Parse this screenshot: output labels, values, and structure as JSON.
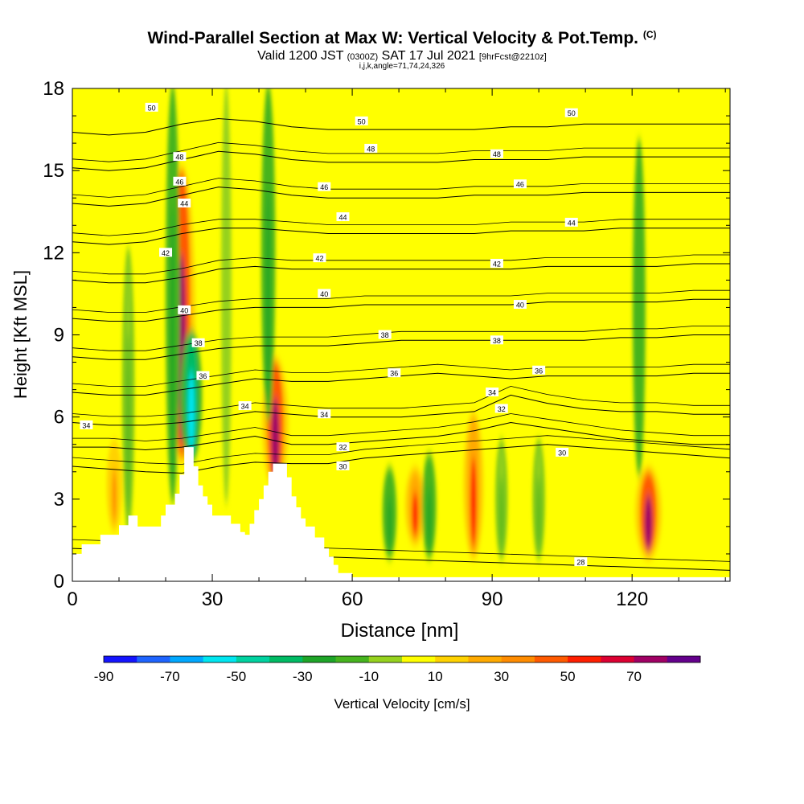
{
  "titles": {
    "main": "Wind-Parallel Section at Max W: Vertical Velocity & Pot.Temp.",
    "main_suffix": "(C)",
    "valid_prefix": "Valid 1200 JST",
    "valid_utc": "(0300Z)",
    "valid_date": "SAT 17 Jul 2021",
    "forecast": "[9hrFcst@2210z]",
    "params": "i,j,k,angle=71,74,24,326"
  },
  "chart_data": {
    "type": "heatmap",
    "title": "Wind-Parallel Section at Max W: Vertical Velocity & Pot.Temp.",
    "xlabel": "Distance [nm]",
    "ylabel": "Height [Kft MSL]",
    "xlim": [
      0,
      141
    ],
    "ylim": [
      0,
      18
    ],
    "x_ticks": [
      "0",
      "30",
      "60",
      "90",
      "120"
    ],
    "x_tick_values": [
      0,
      30,
      60,
      90,
      120
    ],
    "y_ticks": [
      "0",
      "3",
      "6",
      "9",
      "12",
      "15",
      "18"
    ],
    "y_tick_values": [
      0,
      3,
      6,
      9,
      12,
      15,
      18
    ],
    "colorbar": {
      "label": "Vertical Velocity [cm/s]",
      "bounds": [
        -90,
        -80,
        -70,
        -60,
        -50,
        -40,
        -30,
        -20,
        -10,
        0,
        10,
        20,
        30,
        40,
        50,
        60,
        70,
        80
      ],
      "colors": [
        "#1414ff",
        "#1e64ff",
        "#00a8ff",
        "#00e6f0",
        "#00d2a0",
        "#00bb64",
        "#1ea528",
        "#46b41e",
        "#96d21e",
        "#ffff00",
        "#ffd200",
        "#ffaa00",
        "#ff8c00",
        "#ff5a00",
        "#ff1e00",
        "#dc0032",
        "#a00064",
        "#64008c"
      ],
      "tick_labels": [
        "-90",
        "-70",
        "-50",
        "-30",
        "-10",
        "10",
        "30",
        "50",
        "70"
      ],
      "tick_values": [
        -90,
        -70,
        -50,
        -30,
        -10,
        10,
        30,
        50,
        70
      ]
    },
    "velocity_features": [
      {
        "x": 23.5,
        "y_bottom": 4.5,
        "y_top": 15.0,
        "value": 75
      },
      {
        "x": 25.5,
        "y_bottom": 4.5,
        "y_top": 9.0,
        "value": -55
      },
      {
        "x": 21.5,
        "y_bottom": 3.0,
        "y_top": 18.0,
        "value": -25
      },
      {
        "x": 43.5,
        "y_bottom": 3.5,
        "y_top": 8.0,
        "value": 75
      },
      {
        "x": 42.0,
        "y_bottom": 6.0,
        "y_top": 18.0,
        "value": -25
      },
      {
        "x": 73.5,
        "y_bottom": 1.5,
        "y_top": 4.0,
        "value": 50
      },
      {
        "x": 68.0,
        "y_bottom": 1.0,
        "y_top": 4.0,
        "value": -25
      },
      {
        "x": 76.5,
        "y_bottom": 1.0,
        "y_top": 4.5,
        "value": -25
      },
      {
        "x": 86.0,
        "y_bottom": 1.0,
        "y_top": 6.0,
        "value": 50
      },
      {
        "x": 92.0,
        "y_bottom": 1.0,
        "y_top": 5.0,
        "value": -15
      },
      {
        "x": 123.5,
        "y_bottom": 1.0,
        "y_top": 4.0,
        "value": 75
      },
      {
        "x": 121.5,
        "y_bottom": 4.0,
        "y_top": 16.0,
        "value": -20
      },
      {
        "x": 12.0,
        "y_bottom": 2.0,
        "y_top": 12.0,
        "value": -15
      },
      {
        "x": 9.0,
        "y_bottom": 2.0,
        "y_top": 5.0,
        "value": 30
      },
      {
        "x": 33.0,
        "y_bottom": 3.0,
        "y_top": 18.0,
        "value": -10
      },
      {
        "x": 100.0,
        "y_bottom": 1.0,
        "y_top": 5.0,
        "value": -15
      }
    ],
    "terrain": {
      "x": [
        0,
        2,
        2,
        6,
        6,
        10,
        10,
        12,
        12,
        14,
        14,
        19,
        19,
        20,
        20,
        22,
        22,
        23,
        23,
        24,
        24,
        26,
        26,
        27,
        27,
        28,
        28,
        29,
        29,
        30,
        30,
        34,
        34,
        36,
        36,
        37,
        37,
        38,
        38,
        39,
        39,
        40,
        40,
        41,
        41,
        42,
        42,
        43,
        43,
        44,
        44,
        46,
        46,
        47,
        47,
        48,
        48,
        49,
        49,
        50,
        50,
        52,
        52,
        54,
        54,
        55,
        55,
        56,
        56,
        57,
        57,
        60,
        60
      ],
      "y": [
        1.0,
        1.0,
        1.35,
        1.35,
        1.7,
        1.7,
        2.05,
        2.05,
        2.4,
        2.4,
        2.0,
        2.0,
        2.4,
        2.4,
        2.8,
        2.8,
        3.2,
        3.2,
        3.9,
        3.9,
        4.9,
        4.9,
        4.2,
        4.2,
        3.5,
        3.5,
        3.1,
        3.1,
        2.8,
        2.8,
        2.4,
        2.4,
        2.1,
        2.1,
        1.8,
        1.8,
        1.7,
        1.7,
        2.1,
        2.1,
        2.6,
        2.6,
        3.0,
        3.0,
        3.5,
        3.5,
        4.0,
        4.0,
        4.3,
        4.3,
        4.3,
        4.3,
        3.8,
        3.8,
        3.1,
        3.1,
        2.7,
        2.7,
        2.3,
        2.3,
        2.0,
        2.0,
        1.6,
        1.6,
        1.2,
        1.2,
        0.9,
        0.9,
        0.6,
        0.6,
        0.3,
        0.3,
        0.0
      ]
    },
    "theta_contours": [
      {
        "level": 28,
        "label": "28",
        "y": [
          1.2,
          1.1,
          1.0,
          0.9,
          0.8,
          0.7,
          0.6,
          0.5,
          0.4
        ]
      },
      {
        "level": 30,
        "label": "30",
        "y": [
          4.2,
          4.1,
          4.0,
          3.95,
          4.2,
          4.35,
          4.3,
          4.3,
          4.5,
          4.6,
          4.7,
          4.8,
          4.9,
          5.0,
          4.9,
          4.8,
          4.7,
          4.6,
          4.5
        ]
      },
      {
        "level": 32,
        "label": "32",
        "y": [
          4.9,
          4.9,
          4.8,
          4.9,
          5.1,
          5.3,
          5.0,
          5.0,
          5.1,
          5.2,
          5.3,
          5.5,
          5.8,
          5.6,
          5.4,
          5.2,
          5.1,
          5.0,
          5.0
        ]
      },
      {
        "level": 34,
        "label": "34",
        "y": [
          5.8,
          5.7,
          5.7,
          5.8,
          6.0,
          6.2,
          6.1,
          6.0,
          6.0,
          6.0,
          6.1,
          6.2,
          6.8,
          6.5,
          6.3,
          6.2,
          6.2,
          6.1,
          6.1
        ]
      },
      {
        "level": 36,
        "label": "36",
        "y": [
          6.9,
          6.8,
          6.8,
          7.0,
          7.2,
          7.4,
          7.3,
          7.3,
          7.4,
          7.5,
          7.6,
          7.5,
          7.4,
          7.5,
          7.5,
          7.5,
          7.5,
          7.6,
          7.6
        ]
      },
      {
        "level": 38,
        "label": "38",
        "y": [
          8.2,
          8.1,
          8.1,
          8.3,
          8.5,
          8.6,
          8.6,
          8.6,
          8.7,
          8.8,
          8.8,
          8.8,
          8.8,
          8.8,
          8.8,
          8.9,
          8.9,
          9.0,
          9.0
        ]
      },
      {
        "level": 40,
        "label": "40",
        "y": [
          9.6,
          9.5,
          9.5,
          9.7,
          9.9,
          10.0,
          10.0,
          10.0,
          10.1,
          10.1,
          10.1,
          10.1,
          10.1,
          10.2,
          10.2,
          10.2,
          10.2,
          10.3,
          10.3
        ]
      },
      {
        "level": 42,
        "label": "42",
        "y": [
          11.0,
          10.9,
          10.9,
          11.1,
          11.4,
          11.5,
          11.4,
          11.4,
          11.4,
          11.4,
          11.4,
          11.4,
          11.4,
          11.5,
          11.5,
          11.5,
          11.5,
          11.6,
          11.6
        ]
      },
      {
        "level": 44,
        "label": "44",
        "y": [
          12.4,
          12.3,
          12.4,
          12.7,
          12.9,
          12.9,
          12.8,
          12.7,
          12.7,
          12.7,
          12.7,
          12.7,
          12.8,
          12.8,
          12.8,
          12.9,
          12.9,
          12.9,
          12.9
        ]
      },
      {
        "level": 46,
        "label": "46",
        "y": [
          13.8,
          13.7,
          13.8,
          14.1,
          14.4,
          14.3,
          14.1,
          14.0,
          14.0,
          14.0,
          14.0,
          14.1,
          14.1,
          14.1,
          14.2,
          14.2,
          14.2,
          14.2,
          14.2
        ]
      },
      {
        "level": 48,
        "label": "48",
        "y": [
          15.1,
          15.0,
          15.1,
          15.4,
          15.7,
          15.6,
          15.4,
          15.3,
          15.3,
          15.3,
          15.3,
          15.4,
          15.4,
          15.4,
          15.5,
          15.5,
          15.5,
          15.5,
          15.5
        ]
      },
      {
        "level": 50,
        "label": "50",
        "y": [
          16.4,
          16.3,
          16.4,
          16.7,
          16.9,
          16.8,
          16.6,
          16.5,
          16.5,
          16.5,
          16.5,
          16.5,
          16.6,
          16.6,
          16.7,
          16.7,
          16.7,
          16.7,
          16.7
        ]
      }
    ],
    "contour_labels": [
      {
        "text": "50",
        "x": 17,
        "y": 17.3
      },
      {
        "text": "50",
        "x": 62,
        "y": 16.8
      },
      {
        "text": "50",
        "x": 107,
        "y": 17.1
      },
      {
        "text": "48",
        "x": 23,
        "y": 15.5
      },
      {
        "text": "48",
        "x": 64,
        "y": 15.8
      },
      {
        "text": "48",
        "x": 91,
        "y": 15.6
      },
      {
        "text": "46",
        "x": 23,
        "y": 14.6
      },
      {
        "text": "46",
        "x": 54,
        "y": 14.4
      },
      {
        "text": "46",
        "x": 96,
        "y": 14.5
      },
      {
        "text": "44",
        "x": 24,
        "y": 13.8
      },
      {
        "text": "44",
        "x": 58,
        "y": 13.3
      },
      {
        "text": "44",
        "x": 107,
        "y": 13.1
      },
      {
        "text": "42",
        "x": 20,
        "y": 12.0
      },
      {
        "text": "42",
        "x": 53,
        "y": 11.8
      },
      {
        "text": "42",
        "x": 91,
        "y": 11.6
      },
      {
        "text": "40",
        "x": 24,
        "y": 9.9
      },
      {
        "text": "40",
        "x": 54,
        "y": 10.5
      },
      {
        "text": "40",
        "x": 96,
        "y": 10.1
      },
      {
        "text": "38",
        "x": 27,
        "y": 8.7
      },
      {
        "text": "38",
        "x": 67,
        "y": 9.0
      },
      {
        "text": "38",
        "x": 91,
        "y": 8.8
      },
      {
        "text": "36",
        "x": 28,
        "y": 7.5
      },
      {
        "text": "36",
        "x": 69,
        "y": 7.6
      },
      {
        "text": "36",
        "x": 100,
        "y": 7.7
      },
      {
        "text": "34",
        "x": 3,
        "y": 5.7
      },
      {
        "text": "34",
        "x": 37,
        "y": 6.4
      },
      {
        "text": "34",
        "x": 54,
        "y": 6.1
      },
      {
        "text": "34",
        "x": 90,
        "y": 6.9
      },
      {
        "text": "32",
        "x": 58,
        "y": 4.9
      },
      {
        "text": "32",
        "x": 92,
        "y": 6.3
      },
      {
        "text": "30",
        "x": 58,
        "y": 4.2
      },
      {
        "text": "30",
        "x": 105,
        "y": 4.7
      },
      {
        "text": "28",
        "x": 109,
        "y": 0.7
      }
    ]
  }
}
